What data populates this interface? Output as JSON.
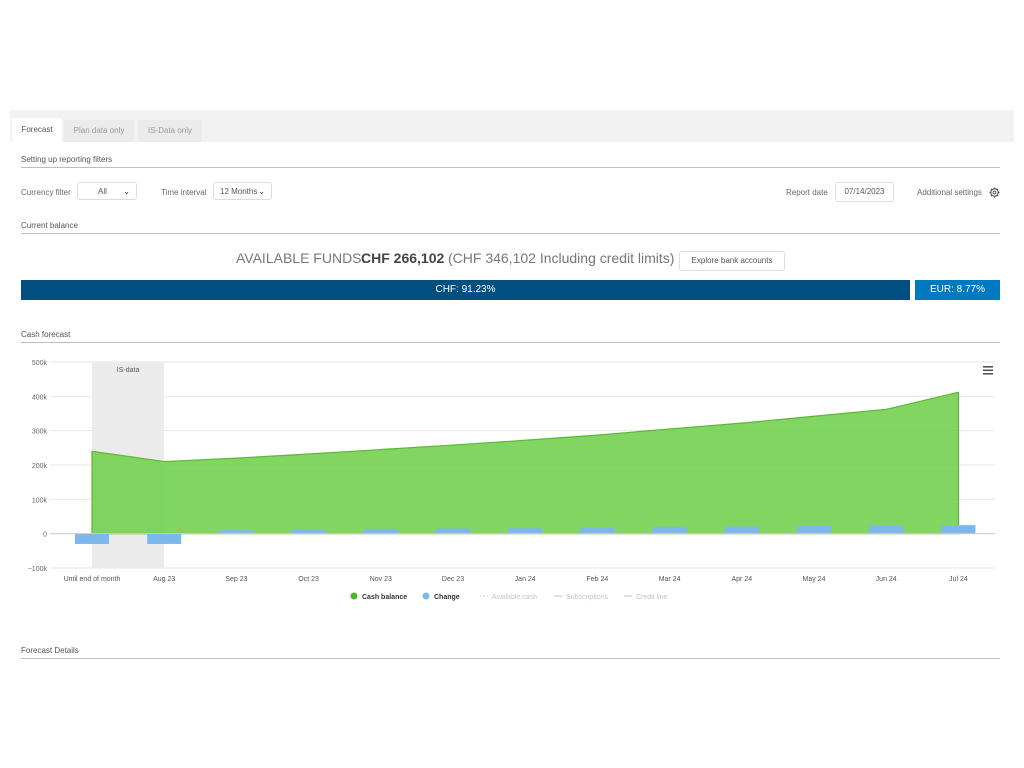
{
  "tabs": [
    {
      "label": "Forecast",
      "active": true
    },
    {
      "label": "Plan data only",
      "active": false
    },
    {
      "label": "IS-Data only",
      "active": false
    }
  ],
  "filters": {
    "title": "Setting up reporting filters",
    "currency_label": "Currency filter",
    "currency_value": "All",
    "interval_label": "Time interval",
    "interval_value": "12 Months",
    "report_date_label": "Report date",
    "report_date_value": "07/14/2023",
    "additional_settings": "Additional settings"
  },
  "balance": {
    "title": "Current balance",
    "available_label": "AVAILABLE FUNDS:",
    "available_value": "CHF 266,102",
    "credit_note": "(CHF 346,102 Including credit limits)",
    "explore_button": "Explore bank accounts",
    "chf_bar": "CHF: 91.23%",
    "eur_bar": "EUR: 8.77%",
    "chf_share": 91.23,
    "eur_share": 8.77,
    "chf_color": "#004f80",
    "eur_color": "#0079c1"
  },
  "forecast": {
    "title": "Cash forecast",
    "details_title": "Forecast Details",
    "menu_icon": "hamburger-menu-icon",
    "settings_icon": "gear-icon"
  },
  "chart_data": {
    "type": "area",
    "categories": [
      "Until end of month",
      "Aug 23",
      "Sep 23",
      "Oct 23",
      "Nov 23",
      "Dec 23",
      "Jan 24",
      "Feb 24",
      "Mar 24",
      "Apr 24",
      "May 24",
      "Jun 24",
      "Jul 24"
    ],
    "series": [
      {
        "name": "Cash balance",
        "type": "area",
        "color": "#6fcf4a",
        "values": [
          240000,
          210000,
          220000,
          232000,
          245000,
          258000,
          272000,
          287000,
          305000,
          322000,
          342000,
          362000,
          412000
        ]
      },
      {
        "name": "Change",
        "type": "bar",
        "color": "#7db8ec",
        "values": [
          -30000,
          -30000,
          10000,
          12000,
          14000,
          15000,
          16000,
          18000,
          20000,
          21000,
          22000,
          24000,
          25000
        ]
      }
    ],
    "legend": [
      {
        "name": "Cash balance",
        "color": "#4fb52b",
        "active": true,
        "marker": "dot"
      },
      {
        "name": "Change",
        "color": "#7db8ec",
        "active": true,
        "marker": "dot"
      },
      {
        "name": "Available cash",
        "color": "#cccccc",
        "active": false,
        "marker": "dash"
      },
      {
        "name": "Subscriptions",
        "color": "#cccccc",
        "active": false,
        "marker": "line"
      },
      {
        "name": "Credit line",
        "color": "#cccccc",
        "active": false,
        "marker": "line"
      }
    ],
    "band_label": "IS-data",
    "y_ticks": [
      "500k",
      "400k",
      "300k",
      "200k",
      "100k",
      "0",
      "−100k"
    ],
    "ylim": [
      -100000,
      500000
    ],
    "grid": true,
    "legend_position": "bottom"
  }
}
